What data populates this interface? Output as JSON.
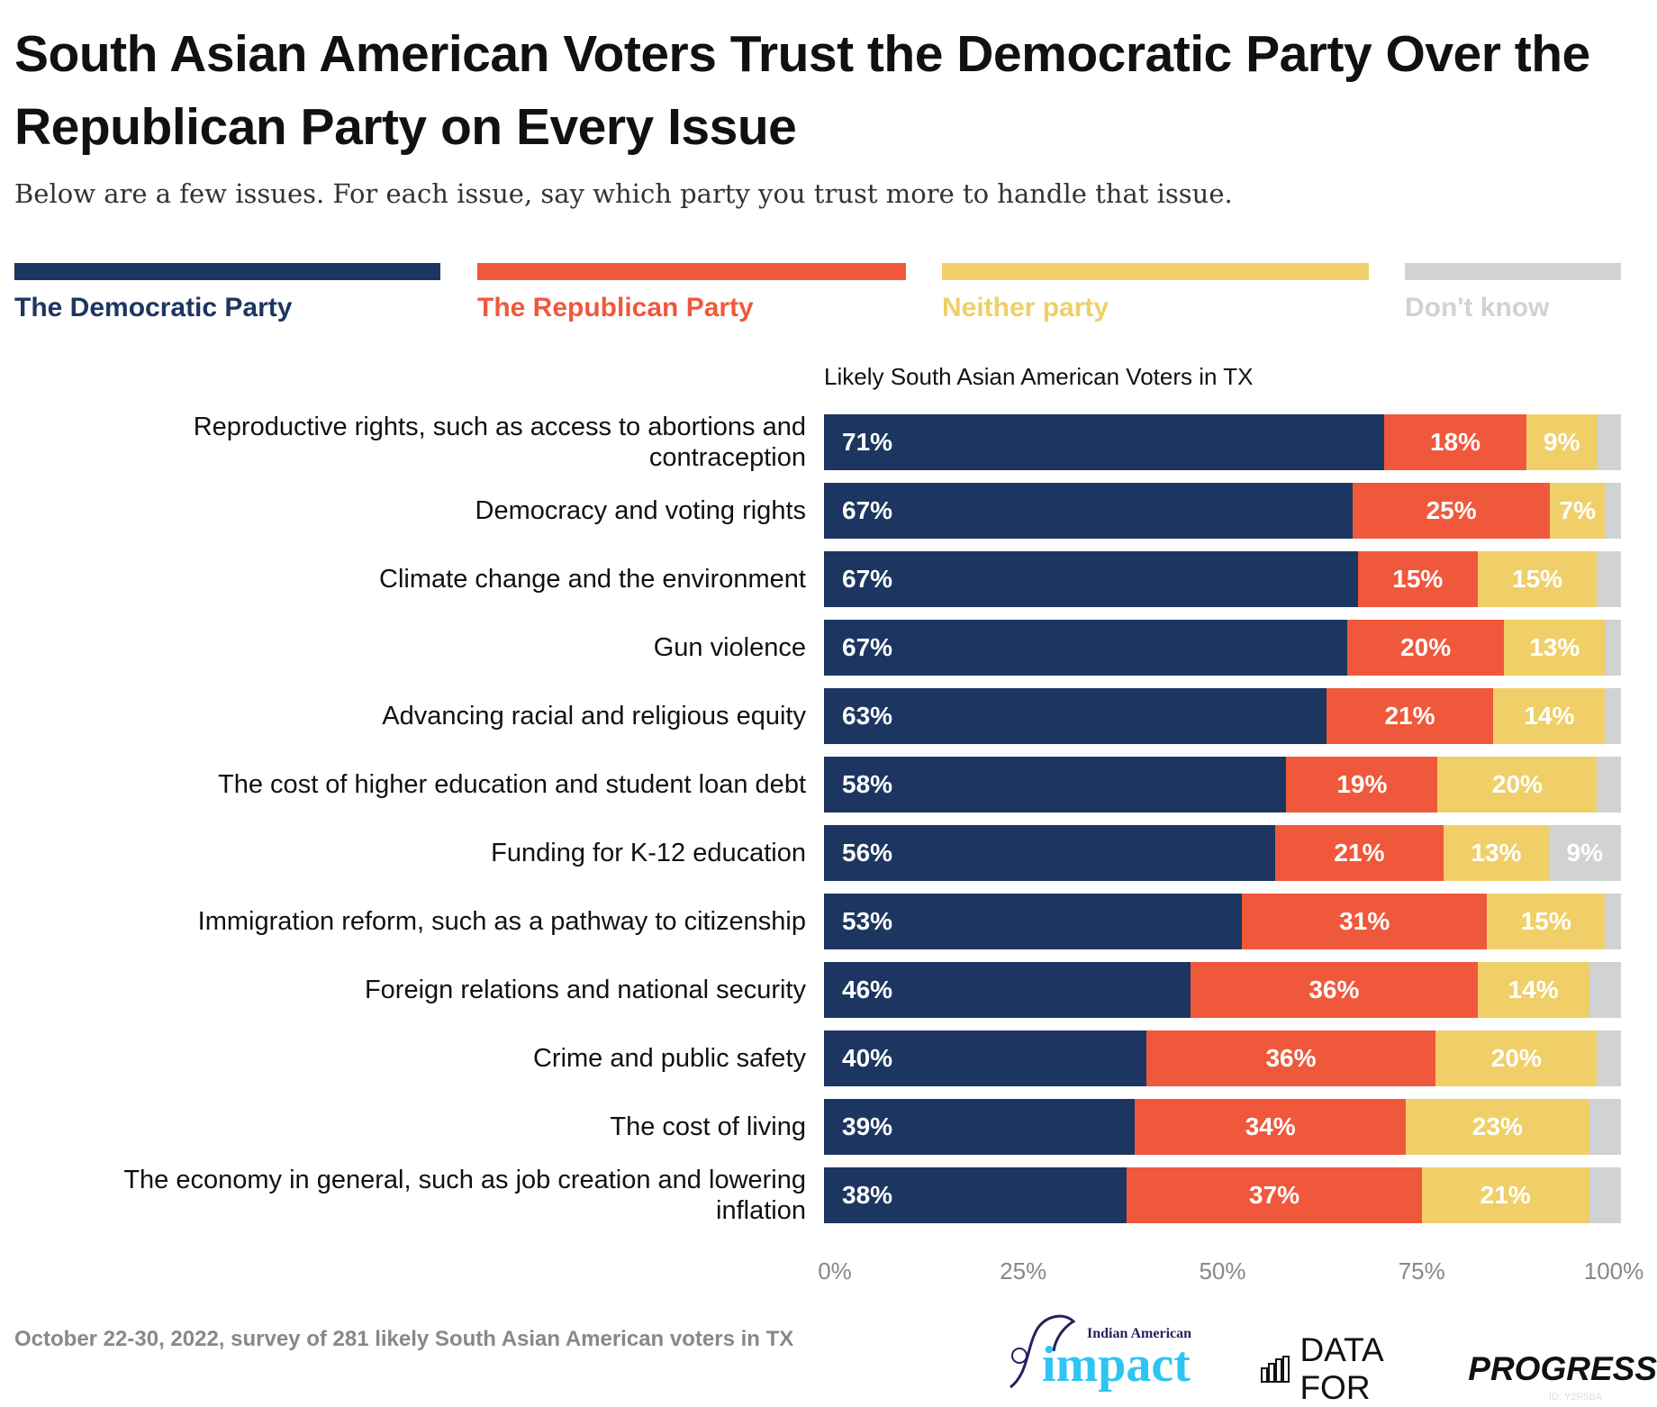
{
  "title": "South Asian American Voters Trust the Democratic Party Over the Republican Party on Every Issue",
  "subtitle": "Below are a few issues. For each issue, say which party you trust more to handle that issue.",
  "legend": [
    {
      "label": "The Democratic Party",
      "color": "#1c3661"
    },
    {
      "label": "The Republican Party",
      "color": "#f0583c"
    },
    {
      "label": "Neither party",
      "color": "#f0cf68"
    },
    {
      "label": "Don't know",
      "color": "#d1d2d4"
    }
  ],
  "chart_data": {
    "type": "bar",
    "orientation": "horizontal-stacked",
    "panel_title": "Likely South Asian American Voters in TX",
    "categories": [
      "Reproductive rights, such as access to abortions and contraception",
      "Democracy and voting rights",
      "Climate change and the environment",
      "Gun violence",
      "Advancing racial and religious equity",
      "The cost of higher education and student loan debt",
      "Funding for K-12 education",
      "Immigration reform, such as a pathway to citizenship",
      "Foreign relations and national security",
      "Crime and public safety",
      "The cost of living",
      "The economy in general, such as job creation and lowering inflation"
    ],
    "series": [
      {
        "name": "The Democratic Party",
        "values": [
          71,
          67,
          67,
          67,
          63,
          58,
          56,
          53,
          46,
          40,
          39,
          38
        ],
        "labeled": [
          true,
          true,
          true,
          true,
          true,
          true,
          true,
          true,
          true,
          true,
          true,
          true
        ]
      },
      {
        "name": "The Republican Party",
        "values": [
          18,
          25,
          15,
          20,
          21,
          19,
          21,
          31,
          36,
          36,
          34,
          37
        ],
        "labeled": [
          true,
          true,
          true,
          true,
          true,
          true,
          true,
          true,
          true,
          true,
          true,
          true
        ]
      },
      {
        "name": "Neither party",
        "values": [
          9,
          7,
          15,
          13,
          14,
          20,
          13,
          15,
          14,
          20,
          23,
          21
        ],
        "labeled": [
          true,
          true,
          true,
          true,
          true,
          true,
          true,
          true,
          true,
          true,
          true,
          true
        ]
      },
      {
        "name": "Don't know",
        "values": [
          3,
          2,
          3,
          2,
          2,
          3,
          9,
          2,
          4,
          3,
          4,
          4
        ],
        "labeled": [
          false,
          false,
          false,
          false,
          false,
          false,
          true,
          false,
          false,
          false,
          false,
          false
        ]
      }
    ],
    "xlim": [
      0,
      100
    ],
    "xticks": [
      "0%",
      "25%",
      "50%",
      "75%",
      "100%"
    ],
    "grid": false,
    "legend_position": "top"
  },
  "footer": "October 22-30, 2022, survey of 281 likely South Asian American voters in TX",
  "logos": {
    "impact_top": "Indian American",
    "impact_main": "impact",
    "dfp_light": "DATA FOR",
    "dfp_bold": "PROGRESS"
  },
  "id_label": "ID: Y2R5BA"
}
